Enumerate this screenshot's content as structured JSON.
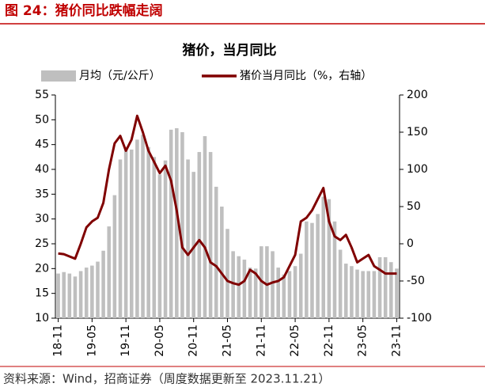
{
  "figure_title": "图 24：猪价同比跌幅走阔",
  "source": "资料来源：Wind，招商证券（周度数据更新至 2023.11.21）",
  "chart_data": {
    "type": "bar_line",
    "title": "猪价，当月同比",
    "categories": [
      "18-11",
      null,
      null,
      null,
      null,
      null,
      "19-05",
      null,
      null,
      null,
      null,
      null,
      "19-11",
      null,
      null,
      null,
      null,
      null,
      "20-05",
      null,
      null,
      null,
      null,
      null,
      "20-11",
      null,
      null,
      null,
      null,
      null,
      "21-05",
      null,
      null,
      null,
      null,
      null,
      "21-11",
      null,
      null,
      null,
      null,
      null,
      "22-05",
      null,
      null,
      null,
      null,
      null,
      "22-11",
      null,
      null,
      null,
      null,
      null,
      "23-05",
      null,
      null,
      null,
      null,
      null,
      "23-11"
    ],
    "series": [
      {
        "name": "月均（元/公斤）",
        "color": "#bfbfbf",
        "type": "bar",
        "values": [
          19.0,
          19.3,
          19.0,
          18.4,
          19.5,
          20.2,
          20.6,
          21.4,
          23.6,
          28.5,
          34.8,
          42,
          44.5,
          44,
          46,
          47,
          44.5,
          42.5,
          39,
          41.8,
          48,
          48.3,
          47.5,
          42,
          39.5,
          43.5,
          46.7,
          43.5,
          36.5,
          32.5,
          28,
          23.5,
          22.5,
          21.8,
          20.2,
          20,
          24.5,
          24.5,
          23.5,
          20.2,
          18.8,
          19.5,
          20.5,
          23,
          29.5,
          29.2,
          31,
          34.5,
          34,
          29.5,
          23.8,
          21,
          20.5,
          19.8,
          19.5,
          19.5,
          19.5,
          22.3,
          22.3,
          21.3,
          20
        ]
      },
      {
        "name": "猪价当月同比（%，右轴）",
        "color": "#800000",
        "type": "line",
        "axis": "y2",
        "values": [
          -13,
          -14,
          -17,
          -20,
          0,
          22,
          30,
          35,
          55,
          100,
          135,
          145,
          125,
          140,
          172,
          150,
          125,
          110,
          95,
          105,
          85,
          45,
          -5,
          -15,
          -5,
          5,
          -5,
          -25,
          -30,
          -40,
          -50,
          -53,
          -55,
          -50,
          -35,
          -40,
          -50,
          -55,
          -52,
          -50,
          -45,
          -30,
          -15,
          30,
          35,
          45,
          60,
          75,
          30,
          10,
          5,
          12,
          -5,
          -25,
          -20,
          -15,
          -30,
          -35,
          -40,
          -40,
          -40
        ]
      }
    ],
    "ylim": [
      10,
      55
    ],
    "yticks": [
      10,
      15,
      20,
      25,
      30,
      35,
      40,
      45,
      50,
      55
    ],
    "y2lim": [
      -100,
      200
    ],
    "y2ticks": [
      -100,
      -50,
      0,
      50,
      100,
      150,
      200
    ]
  }
}
